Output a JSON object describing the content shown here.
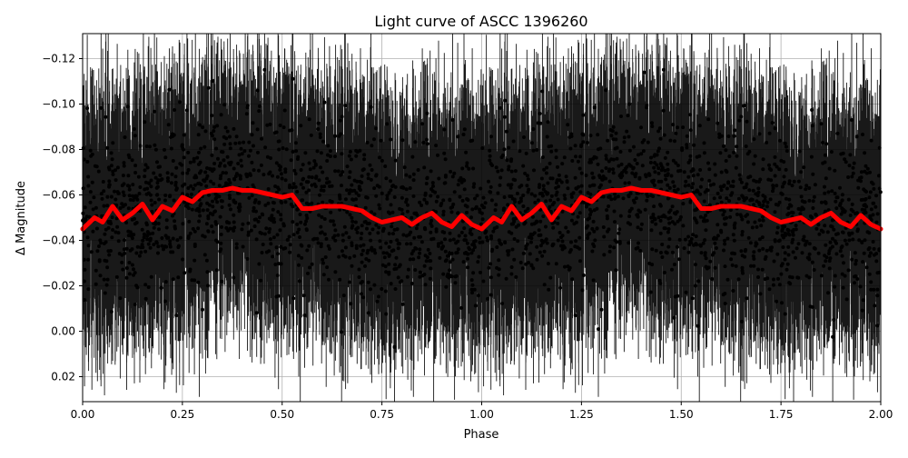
{
  "chart_data": {
    "type": "scatter",
    "title": "Light curve of ASCC 1396260",
    "xlabel": "Phase",
    "ylabel": "Δ Magnitude",
    "xlim": [
      0,
      2
    ],
    "ylim": [
      0.031,
      -0.131
    ],
    "y_inverted": true,
    "grid": true,
    "x_ticks": [
      0.0,
      0.25,
      0.5,
      0.75,
      1.0,
      1.25,
      1.5,
      1.75,
      2.0
    ],
    "x_tick_labels": [
      "0.00",
      "0.25",
      "0.50",
      "0.75",
      "1.00",
      "1.25",
      "1.50",
      "1.75",
      "2.00"
    ],
    "y_ticks": [
      -0.12,
      -0.1,
      -0.08,
      -0.06,
      -0.04,
      -0.02,
      0.0,
      0.02
    ],
    "y_tick_labels": [
      "−0.12",
      "−0.10",
      "−0.08",
      "−0.06",
      "−0.04",
      "−0.02",
      "0.00",
      "0.02"
    ],
    "colors": {
      "observations": "#000000",
      "binned": "#ff0000"
    },
    "observations": {
      "note_visible": "dense black points with vertical error bars spanning full y-range",
      "approx_point_count": 4000,
      "typical_errorbar_halfwidth": 0.03
    },
    "binned_curve": {
      "x": [
        0.0,
        0.03,
        0.05,
        0.075,
        0.1,
        0.125,
        0.15,
        0.175,
        0.2,
        0.225,
        0.25,
        0.275,
        0.3,
        0.325,
        0.35,
        0.375,
        0.4,
        0.425,
        0.45,
        0.475,
        0.5,
        0.525,
        0.55,
        0.575,
        0.6,
        0.625,
        0.65,
        0.675,
        0.7,
        0.725,
        0.75,
        0.775,
        0.8,
        0.825,
        0.85,
        0.875,
        0.9,
        0.925,
        0.95,
        0.975,
        1.0,
        1.03,
        1.05,
        1.075,
        1.1,
        1.125,
        1.15,
        1.175,
        1.2,
        1.225,
        1.25,
        1.275,
        1.3,
        1.325,
        1.35,
        1.375,
        1.4,
        1.425,
        1.45,
        1.475,
        1.5,
        1.525,
        1.55,
        1.575,
        1.6,
        1.625,
        1.65,
        1.675,
        1.7,
        1.725,
        1.75,
        1.775,
        1.8,
        1.825,
        1.85,
        1.875,
        1.9,
        1.925,
        1.95,
        1.975,
        2.0
      ],
      "y": [
        -0.045,
        -0.05,
        -0.048,
        -0.055,
        -0.049,
        -0.052,
        -0.056,
        -0.049,
        -0.055,
        -0.053,
        -0.059,
        -0.057,
        -0.061,
        -0.062,
        -0.062,
        -0.063,
        -0.062,
        -0.062,
        -0.061,
        -0.06,
        -0.059,
        -0.06,
        -0.054,
        -0.054,
        -0.055,
        -0.055,
        -0.055,
        -0.054,
        -0.053,
        -0.05,
        -0.048,
        -0.049,
        -0.05,
        -0.047,
        -0.05,
        -0.052,
        -0.048,
        -0.046,
        -0.051,
        -0.047,
        -0.045,
        -0.05,
        -0.048,
        -0.055,
        -0.049,
        -0.052,
        -0.056,
        -0.049,
        -0.055,
        -0.053,
        -0.059,
        -0.057,
        -0.061,
        -0.062,
        -0.062,
        -0.063,
        -0.062,
        -0.062,
        -0.061,
        -0.06,
        -0.059,
        -0.06,
        -0.054,
        -0.054,
        -0.055,
        -0.055,
        -0.055,
        -0.054,
        -0.053,
        -0.05,
        -0.048,
        -0.049,
        -0.05,
        -0.047,
        -0.05,
        -0.052,
        -0.048,
        -0.046,
        -0.051,
        -0.047,
        -0.045
      ]
    }
  }
}
